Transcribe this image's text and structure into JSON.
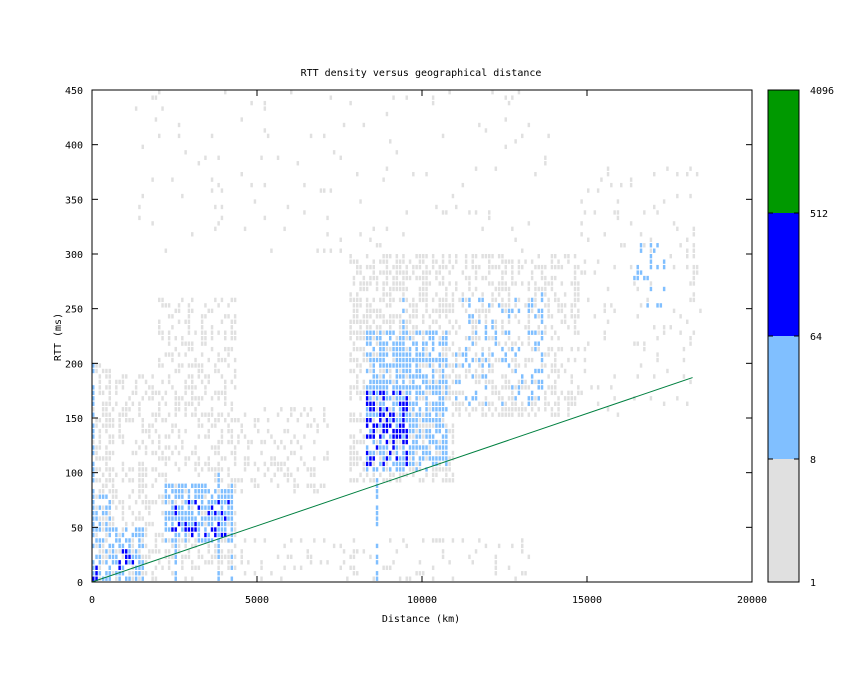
{
  "chart_data": {
    "type": "heatmap",
    "title": "RTT density versus geographical distance",
    "xlabel": "Distance (km)",
    "ylabel": "RTT (ms)",
    "xlim": [
      0,
      20000
    ],
    "ylim": [
      0,
      450
    ],
    "xticks": [
      0,
      5000,
      10000,
      15000,
      20000
    ],
    "yticks": [
      0,
      50,
      100,
      150,
      200,
      250,
      300,
      350,
      400,
      450
    ],
    "grid": false,
    "colorbar": {
      "scale": "log",
      "ticks": [
        "1",
        "8",
        "64",
        "512",
        "4096"
      ],
      "bins": [
        {
          "from": 1,
          "to": 8,
          "color": "#e0e0e0"
        },
        {
          "from": 8,
          "to": 64,
          "color": "#80bfff"
        },
        {
          "from": 64,
          "to": 512,
          "color": "#0000ff"
        },
        {
          "from": 512,
          "to": 4096,
          "color": "#009900"
        }
      ]
    },
    "bin_size": {
      "distance_km": 100,
      "rtt_ms": 5
    },
    "density_regions": [
      {
        "level": 1,
        "x": [
          0,
          600
        ],
        "y": [
          0,
          200
        ],
        "density": 0.5
      },
      {
        "level": 2,
        "x": [
          0,
          600
        ],
        "y": [
          0,
          80
        ],
        "density": 0.5
      },
      {
        "level": 3,
        "x": [
          0,
          200
        ],
        "y": [
          0,
          15
        ],
        "density": 0.8
      },
      {
        "level": 1,
        "x": [
          500,
          2000
        ],
        "y": [
          0,
          190
        ],
        "density": 0.35
      },
      {
        "level": 2,
        "x": [
          600,
          1600
        ],
        "y": [
          0,
          50
        ],
        "density": 0.55
      },
      {
        "level": 3,
        "x": [
          800,
          1300
        ],
        "y": [
          10,
          30
        ],
        "density": 0.2
      },
      {
        "level": 1,
        "x": [
          2000,
          4400
        ],
        "y": [
          10,
          260
        ],
        "density": 0.35
      },
      {
        "level": 2,
        "x": [
          2200,
          4300
        ],
        "y": [
          35,
          90
        ],
        "density": 0.7
      },
      {
        "level": 3,
        "x": [
          2400,
          4200
        ],
        "y": [
          40,
          75
        ],
        "density": 0.15
      },
      {
        "level": 1,
        "x": [
          4400,
          7200
        ],
        "y": [
          80,
          160
        ],
        "density": 0.25
      },
      {
        "level": 1,
        "x": [
          7800,
          11000
        ],
        "y": [
          90,
          300
        ],
        "density": 0.55
      },
      {
        "level": 2,
        "x": [
          8300,
          10800
        ],
        "y": [
          100,
          230
        ],
        "density": 0.6
      },
      {
        "level": 3,
        "x": [
          8300,
          9600
        ],
        "y": [
          105,
          175
        ],
        "density": 0.35
      },
      {
        "level": 1,
        "x": [
          11000,
          14800
        ],
        "y": [
          150,
          300
        ],
        "density": 0.4
      },
      {
        "level": 2,
        "x": [
          11000,
          13600
        ],
        "y": [
          160,
          260
        ],
        "density": 0.2
      },
      {
        "level": 1,
        "x": [
          14800,
          18500
        ],
        "y": [
          150,
          380
        ],
        "density": 0.08
      },
      {
        "level": 2,
        "x": [
          16400,
          17400
        ],
        "y": [
          250,
          310
        ],
        "density": 0.15
      },
      {
        "level": 1,
        "x": [
          0,
          13600
        ],
        "y": [
          0,
          40
        ],
        "density": 0.12
      },
      {
        "level": 1,
        "x": [
          1000,
          14000
        ],
        "y": [
          300,
          450
        ],
        "density": 0.03
      }
    ],
    "vertical_streaks": [
      {
        "x": 8600,
        "y": [
          0,
          100
        ],
        "level": 2
      },
      {
        "x": 2500,
        "y": [
          0,
          100
        ],
        "level": 2
      },
      {
        "x": 3800,
        "y": [
          0,
          100
        ],
        "level": 2
      },
      {
        "x": 4200,
        "y": [
          0,
          90
        ],
        "level": 2
      },
      {
        "x": 13600,
        "y": [
          170,
          270
        ],
        "level": 2
      },
      {
        "x": 9400,
        "y": [
          120,
          260
        ],
        "level": 2
      },
      {
        "x": 16900,
        "y": [
          260,
          310
        ],
        "level": 2
      },
      {
        "x": 7200,
        "y": [
          180,
          195
        ],
        "level": 2
      },
      {
        "x": 14600,
        "y": [
          220,
          300
        ],
        "level": 1
      },
      {
        "x": 18200,
        "y": [
          250,
          330
        ],
        "level": 1
      },
      {
        "x": 0,
        "y": [
          0,
          200
        ],
        "level": 2
      }
    ],
    "reference_line": {
      "x": [
        0,
        18200
      ],
      "y": [
        0,
        187
      ],
      "color": "#008040"
    }
  }
}
